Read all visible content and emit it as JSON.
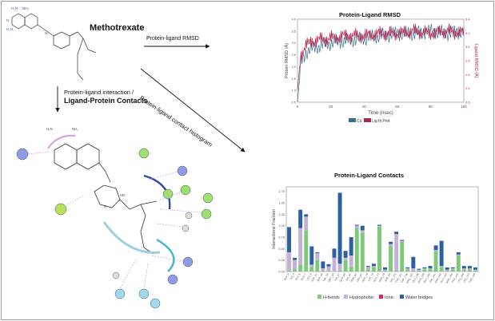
{
  "compound_title": "Methotrexate",
  "arrows": {
    "rmsd_label": "Protein-ligand RMSD",
    "interaction_label_line1": "Protein-ligand interaction /",
    "interaction_label_line2": "Ligand-Protein Contacts",
    "histogram_label": "Protein-ligand contact histogram"
  },
  "rmsd_chart": {
    "title": "Protein-Ligand RMSD",
    "ylabel_left": "Protein RMSD (Å)",
    "ylabel_right": "Ligand RMSD (Å)",
    "xlabel": "Time (nsec)",
    "x_ticks": [
      "0",
      "20",
      "40",
      "60",
      "80",
      "100"
    ],
    "y_ticks_left": [
      "0.5",
      "1.0",
      "1.5",
      "2.0",
      "2.5",
      "3.0",
      "3.5",
      "4.0"
    ],
    "y_ticks_right": [
      "0.6",
      "2.4",
      "2.6",
      "2.8",
      "3.0",
      "3.2",
      "3.4"
    ],
    "legend": [
      "Cα",
      "Lig fit Prot"
    ],
    "colors": {
      "protein": "#3d6e8c",
      "ligand": "#b0264f"
    }
  },
  "contacts_chart": {
    "title": "Protein-Ligand Contacts",
    "ylabel": "Interactions Fraction",
    "y_ticks": [
      "0.00",
      "0.25",
      "0.50",
      "0.75",
      "1.00",
      "1.25",
      "1.50",
      "1.75"
    ],
    "legend": [
      "H-bonds",
      "Hydrophobic",
      "Ionic",
      "Water bridges"
    ],
    "colors": {
      "hbonds": "#7ec97a",
      "hydrophobic": "#c4b0d8",
      "ionic": "#d8246b",
      "water": "#2d5fa3"
    }
  },
  "chart_data": [
    {
      "type": "line",
      "title": "Protein-Ligand RMSD",
      "xlabel": "Time (nsec)",
      "ylabel": "Protein RMSD (Å)",
      "xlim": [
        0,
        100
      ],
      "ylim": [
        0.5,
        4.0
      ],
      "series": [
        {
          "name": "Cα",
          "x": [
            0,
            2,
            5,
            10,
            20,
            30,
            40,
            50,
            60,
            70,
            80,
            90,
            100
          ],
          "values": [
            0.5,
            2.1,
            2.6,
            2.8,
            3.0,
            3.1,
            3.2,
            3.3,
            3.4,
            3.4,
            3.5,
            3.4,
            3.5
          ]
        },
        {
          "name": "Lig fit Prot",
          "x": [
            0,
            2,
            5,
            10,
            20,
            30,
            40,
            50,
            60,
            70,
            80,
            90,
            100
          ],
          "values": [
            1.0,
            2.5,
            2.9,
            3.1,
            3.2,
            3.3,
            3.3,
            3.4,
            3.4,
            3.5,
            3.4,
            3.5,
            3.4
          ]
        }
      ]
    },
    {
      "type": "bar",
      "title": "Protein-Ligand Contacts",
      "ylabel": "Interactions Fraction",
      "ylim": [
        0,
        1.85
      ],
      "categories": [
        "ALA_3",
        "ILE_5",
        "ALA_6",
        "ALA_7",
        "LEU_8",
        "ASP_21",
        "SER_49",
        "VAL_50",
        "MET_53",
        "ILE_57",
        "GLU_60",
        "ILE_61",
        "PHE_62",
        "LEU_67",
        "ARG_70",
        "LYS_73",
        "GLU_77",
        "PRO_79",
        "ASP_94",
        "VAL_115",
        "TYR_121",
        "THR_136",
        "ARG_137",
        "LEU_138",
        "GLN_139",
        "GLU_140",
        "VAL_141",
        "ASN_142",
        "GLY_143",
        "ARG_144",
        "TYR_145",
        "LYS_146",
        "LYS_147",
        "THR_148"
      ],
      "series": [
        {
          "name": "H-bonds",
          "values": [
            0.02,
            0.05,
            0.15,
            0.9,
            0.1,
            0.25,
            0.02,
            0.01,
            0.0,
            0.02,
            0.25,
            0.1,
            0.95,
            0.85,
            0.05,
            0.1,
            0.98,
            0.02,
            0.55,
            0.02,
            0.65,
            0.05,
            0.02,
            0.02,
            0.05,
            0.05,
            0.45,
            0.1,
            0.02,
            0.05,
            0.35,
            0.05,
            0.05,
            0.02
          ]
        },
        {
          "name": "Hydrophobic",
          "values": [
            0.4,
            0.2,
            0.8,
            0.3,
            0.05,
            0.15,
            0.05,
            0.1,
            0.3,
            0.15,
            0.05,
            0.25,
            0.05,
            0.05,
            0.05,
            0.02,
            0.02,
            0.02,
            0.05,
            0.8,
            0.02,
            0.02,
            0.05,
            0.02,
            0.02,
            0.02,
            0.02,
            0.02,
            0.02,
            0.02,
            0.02,
            0.02,
            0.02,
            0.02
          ]
        },
        {
          "name": "Ionic",
          "values": [
            0,
            0,
            0,
            0,
            0,
            0,
            0,
            0,
            0,
            0,
            0,
            0,
            0,
            0,
            0,
            0,
            0,
            0,
            0,
            0,
            0,
            0,
            0,
            0,
            0,
            0,
            0,
            0,
            0,
            0,
            0,
            0,
            0,
            0
          ]
        },
        {
          "name": "Water bridges",
          "values": [
            0.55,
            0.05,
            0.4,
            0.05,
            0.4,
            0.02,
            0.15,
            0.05,
            0.2,
            1.55,
            0.15,
            0.4,
            0.02,
            0.1,
            0.02,
            0.05,
            0.02,
            0.05,
            0.05,
            0.05,
            0.02,
            0.02,
            0.25,
            0.02,
            0.02,
            0.05,
            0.1,
            0.55,
            0.05,
            0.02,
            0.05,
            0.05,
            0.05,
            0.05
          ]
        }
      ]
    }
  ]
}
